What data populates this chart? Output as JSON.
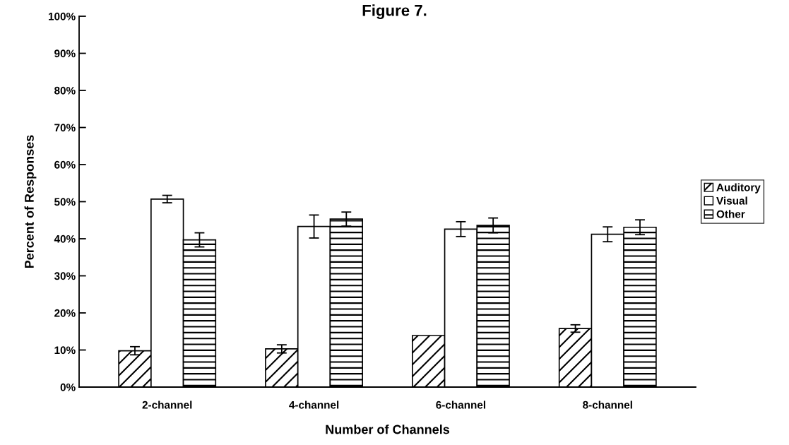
{
  "chart_data": {
    "type": "bar",
    "title": "Figure 7.",
    "xlabel": "Number of Channels",
    "ylabel": "Percent of Responses",
    "categories": [
      "2-channel",
      "4-channel",
      "6-channel",
      "8-channel"
    ],
    "series": [
      {
        "name": "Auditory",
        "color": "#000000",
        "values": [
          9.8,
          10.3,
          13.9,
          15.8
        ],
        "errors": [
          1.1,
          1.1,
          null,
          1.0
        ]
      },
      {
        "name": "Visual",
        "color": "#ffffff",
        "values": [
          50.7,
          43.3,
          42.6,
          41.2
        ],
        "errors": [
          1.0,
          3.1,
          2.0,
          2.0
        ]
      },
      {
        "name": "Other",
        "color": "#000000",
        "values": [
          39.7,
          45.3,
          43.6,
          43.1
        ],
        "errors": [
          1.9,
          1.9,
          2.0,
          2.0
        ]
      }
    ],
    "ylim": [
      0,
      100
    ],
    "yticks": [
      {
        "value": 0,
        "label": "0%"
      },
      {
        "value": 10,
        "label": "10%"
      },
      {
        "value": 20,
        "label": "20%"
      },
      {
        "value": 30,
        "label": "30%"
      },
      {
        "value": 40,
        "label": "40%"
      },
      {
        "value": 50,
        "label": "50%"
      },
      {
        "value": 60,
        "label": "60%"
      },
      {
        "value": 70,
        "label": "70%"
      },
      {
        "value": 80,
        "label": "80%"
      },
      {
        "value": 90,
        "label": "90%"
      },
      {
        "value": 100,
        "label": "100%"
      }
    ],
    "grid": false,
    "legend": "right"
  }
}
